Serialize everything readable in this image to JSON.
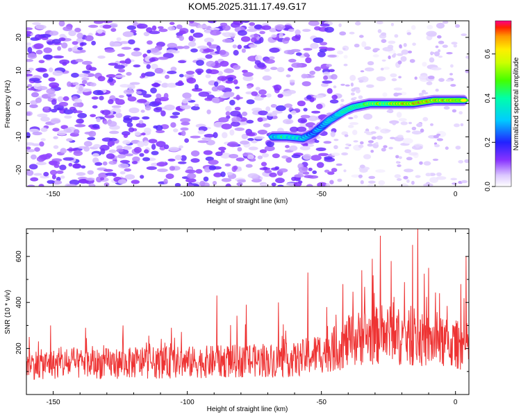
{
  "title": "KOM5.2025.311.17.49.G17",
  "colors": {
    "snr_line": "#ee3333",
    "axis": "#000000",
    "background": "#ffffff"
  },
  "chart_data": [
    {
      "type": "heatmap",
      "title": "KOM5.2025.311.17.49.G17",
      "xlabel": "Height of straight line (km)",
      "ylabel": "Frequency (Hz)",
      "xlim": [
        -160,
        5
      ],
      "ylim": [
        -25,
        25
      ],
      "xticks": [
        -150,
        -100,
        -50,
        0
      ],
      "yticks": [
        -20,
        -10,
        0,
        10,
        20
      ],
      "colorbar": {
        "label": "Normalized spectral amplitude",
        "range": [
          0,
          0.75
        ],
        "ticks": [
          0.0,
          0.2,
          0.4,
          0.6
        ],
        "stops": [
          {
            "value": 0.0,
            "color": "#ffffff"
          },
          {
            "value": 0.05,
            "color": "#dcc8ff"
          },
          {
            "value": 0.12,
            "color": "#8833ff"
          },
          {
            "value": 0.2,
            "color": "#2222ff"
          },
          {
            "value": 0.3,
            "color": "#00ccff"
          },
          {
            "value": 0.4,
            "color": "#00ffaa"
          },
          {
            "value": 0.48,
            "color": "#44ff00"
          },
          {
            "value": 0.56,
            "color": "#ccff00"
          },
          {
            "value": 0.62,
            "color": "#ffee00"
          },
          {
            "value": 0.68,
            "color": "#ff9900"
          },
          {
            "value": 0.72,
            "color": "#ff2200"
          },
          {
            "value": 0.75,
            "color": "#ff0088"
          }
        ]
      },
      "noise": {
        "x_range": [
          -160,
          -45
        ],
        "freq_range": [
          -25,
          25
        ],
        "typical_amplitude": 0.12
      },
      "signal_trace": [
        {
          "x": -68,
          "freq": -10,
          "amplitude": 0.35
        },
        {
          "x": -63,
          "freq": -10,
          "amplitude": 0.45
        },
        {
          "x": -57,
          "freq": -10.5,
          "amplitude": 0.4
        },
        {
          "x": -53,
          "freq": -9,
          "amplitude": 0.3
        },
        {
          "x": -50,
          "freq": -7,
          "amplitude": 0.3
        },
        {
          "x": -47,
          "freq": -5,
          "amplitude": 0.35
        },
        {
          "x": -44,
          "freq": -3.5,
          "amplitude": 0.4
        },
        {
          "x": -41,
          "freq": -2,
          "amplitude": 0.45
        },
        {
          "x": -38,
          "freq": -1,
          "amplitude": 0.5
        },
        {
          "x": -35,
          "freq": -0.5,
          "amplitude": 0.55
        },
        {
          "x": -32,
          "freq": 0,
          "amplitude": 0.6
        },
        {
          "x": -28,
          "freq": 0,
          "amplitude": 0.65
        },
        {
          "x": -24,
          "freq": 0,
          "amplitude": 0.6
        },
        {
          "x": -20,
          "freq": 0,
          "amplitude": 0.68
        },
        {
          "x": -16,
          "freq": 0,
          "amplitude": 0.7
        },
        {
          "x": -12,
          "freq": 0.5,
          "amplitude": 0.72
        },
        {
          "x": -8,
          "freq": 1,
          "amplitude": 0.7
        },
        {
          "x": -4,
          "freq": 1,
          "amplitude": 0.68
        },
        {
          "x": 0,
          "freq": 1,
          "amplitude": 0.72
        },
        {
          "x": 3,
          "freq": 1,
          "amplitude": 0.7
        }
      ]
    },
    {
      "type": "line",
      "xlabel": "Height of straight line (km)",
      "ylabel": "SNR (10 * v/v)",
      "xlim": [
        -160,
        5
      ],
      "ylim": [
        0,
        720
      ],
      "xticks": [
        -150,
        -100,
        -50,
        0
      ],
      "yticks": [
        200,
        400,
        600
      ],
      "series": [
        {
          "name": "SNR",
          "x_start": -160,
          "x_end": 5,
          "n_points": 1100,
          "baseline": [
            {
              "x": -160,
              "value": 130
            },
            {
              "x": -100,
              "value": 140
            },
            {
              "x": -60,
              "value": 150
            },
            {
              "x": -45,
              "value": 200
            },
            {
              "x": -35,
              "value": 250
            },
            {
              "x": -25,
              "value": 260
            },
            {
              "x": -10,
              "value": 230
            },
            {
              "x": 5,
              "value": 210
            }
          ],
          "peaks": [
            {
              "x": -159,
              "value": 250
            },
            {
              "x": -151,
              "value": 300
            },
            {
              "x": -138,
              "value": 290
            },
            {
              "x": -124,
              "value": 300
            },
            {
              "x": -106,
              "value": 290
            },
            {
              "x": -89,
              "value": 430
            },
            {
              "x": -78,
              "value": 390
            },
            {
              "x": -66,
              "value": 400
            },
            {
              "x": -55,
              "value": 530
            },
            {
              "x": -48,
              "value": 380
            },
            {
              "x": -42,
              "value": 480
            },
            {
              "x": -35,
              "value": 540
            },
            {
              "x": -31,
              "value": 590
            },
            {
              "x": -28,
              "value": 690
            },
            {
              "x": -24,
              "value": 580
            },
            {
              "x": -16,
              "value": 650
            },
            {
              "x": -14,
              "value": 720
            },
            {
              "x": -10,
              "value": 550
            },
            {
              "x": -6,
              "value": 440
            },
            {
              "x": 2,
              "value": 480
            },
            {
              "x": 4,
              "value": 600
            }
          ]
        }
      ]
    }
  ]
}
